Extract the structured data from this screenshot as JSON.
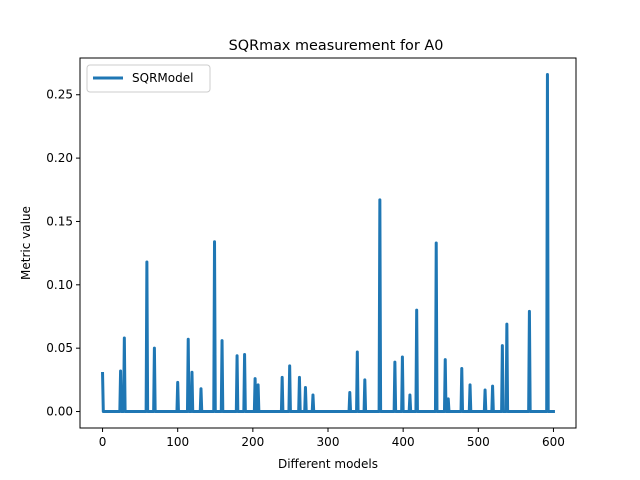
{
  "chart_data": {
    "type": "line",
    "title": "SQRmax measurement for A0",
    "xlabel": "Different models",
    "ylabel": "Metric value",
    "xlim": [
      -30,
      630
    ],
    "ylim": [
      -0.013,
      0.279
    ],
    "xticks": [
      0,
      100,
      200,
      300,
      400,
      500,
      600
    ],
    "yticks": [
      0.0,
      0.05,
      0.1,
      0.15,
      0.2,
      0.25
    ],
    "ytick_labels": [
      "0.00",
      "0.05",
      "0.10",
      "0.15",
      "0.20",
      "0.25"
    ],
    "legend": {
      "position": "top-left"
    },
    "grid": false,
    "series": [
      {
        "name": "SQRModel",
        "color": "#1f77b4",
        "x_range": [
          0,
          600
        ],
        "baseline": 0.0,
        "spikes": [
          [
            0,
            0.03
          ],
          [
            24,
            0.032
          ],
          [
            29,
            0.058
          ],
          [
            59,
            0.118
          ],
          [
            69,
            0.05
          ],
          [
            100,
            0.023
          ],
          [
            114,
            0.057
          ],
          [
            119,
            0.031
          ],
          [
            131,
            0.018
          ],
          [
            149,
            0.134
          ],
          [
            159,
            0.056
          ],
          [
            179,
            0.044
          ],
          [
            189,
            0.045
          ],
          [
            203,
            0.026
          ],
          [
            207,
            0.021
          ],
          [
            239,
            0.027
          ],
          [
            249,
            0.036
          ],
          [
            262,
            0.027
          ],
          [
            270,
            0.019
          ],
          [
            280,
            0.013
          ],
          [
            329,
            0.015
          ],
          [
            339,
            0.047
          ],
          [
            349,
            0.025
          ],
          [
            369,
            0.167
          ],
          [
            389,
            0.039
          ],
          [
            399,
            0.043
          ],
          [
            409,
            0.013
          ],
          [
            418,
            0.08
          ],
          [
            444,
            0.133
          ],
          [
            456,
            0.041
          ],
          [
            460,
            0.01
          ],
          [
            478,
            0.034
          ],
          [
            489,
            0.021
          ],
          [
            509,
            0.017
          ],
          [
            519,
            0.02
          ],
          [
            532,
            0.052
          ],
          [
            538,
            0.069
          ],
          [
            568,
            0.079
          ],
          [
            592,
            0.266
          ]
        ]
      }
    ]
  }
}
